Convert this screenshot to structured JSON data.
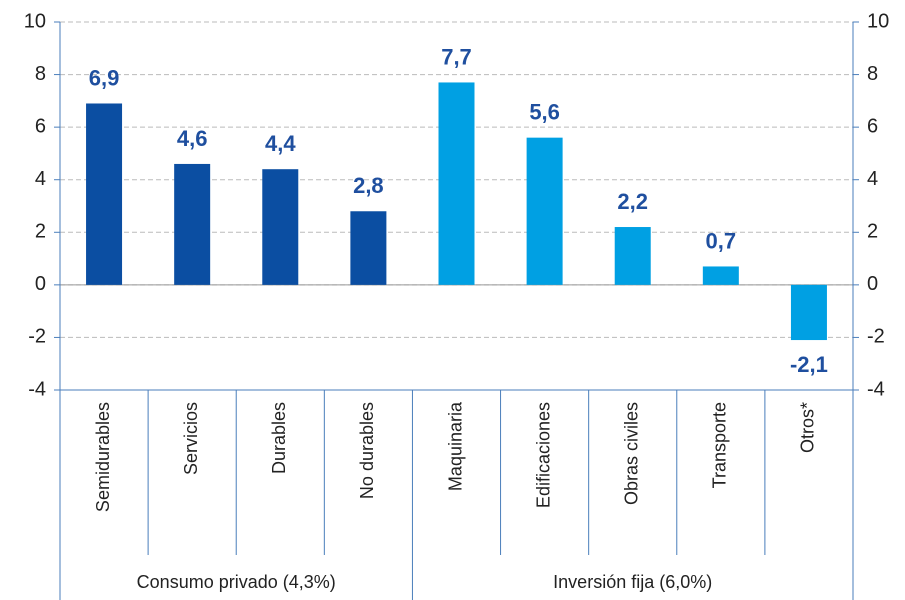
{
  "chart_data": {
    "type": "bar",
    "groups": [
      {
        "name": "Consumo privado (4,3%)",
        "color": "#0b4ea2",
        "categories": [
          "Semidurables",
          "Servicios",
          "Durables",
          "No durables"
        ],
        "values": [
          6.9,
          4.6,
          4.4,
          2.8
        ],
        "value_labels": [
          "6,9",
          "4,6",
          "4,4",
          "2,8"
        ]
      },
      {
        "name": "Inversión fija (6,0%)",
        "color": "#00a0e3",
        "categories": [
          "Maquinaria",
          "Edificaciones",
          "Obras civiles",
          "Transporte",
          "Otros*"
        ],
        "values": [
          7.7,
          5.6,
          2.2,
          0.7,
          -2.1
        ],
        "value_labels": [
          "7,7",
          "5,6",
          "2,2",
          "0,7",
          "-2,1"
        ]
      }
    ],
    "ylim": [
      -4,
      10
    ],
    "yticks": [
      -4,
      -2,
      0,
      2,
      4,
      6,
      8,
      10
    ],
    "y2lim": [
      -4,
      10
    ],
    "y2ticks": [
      -4,
      -2,
      0,
      2,
      4,
      6,
      8,
      10
    ],
    "grid": true
  }
}
